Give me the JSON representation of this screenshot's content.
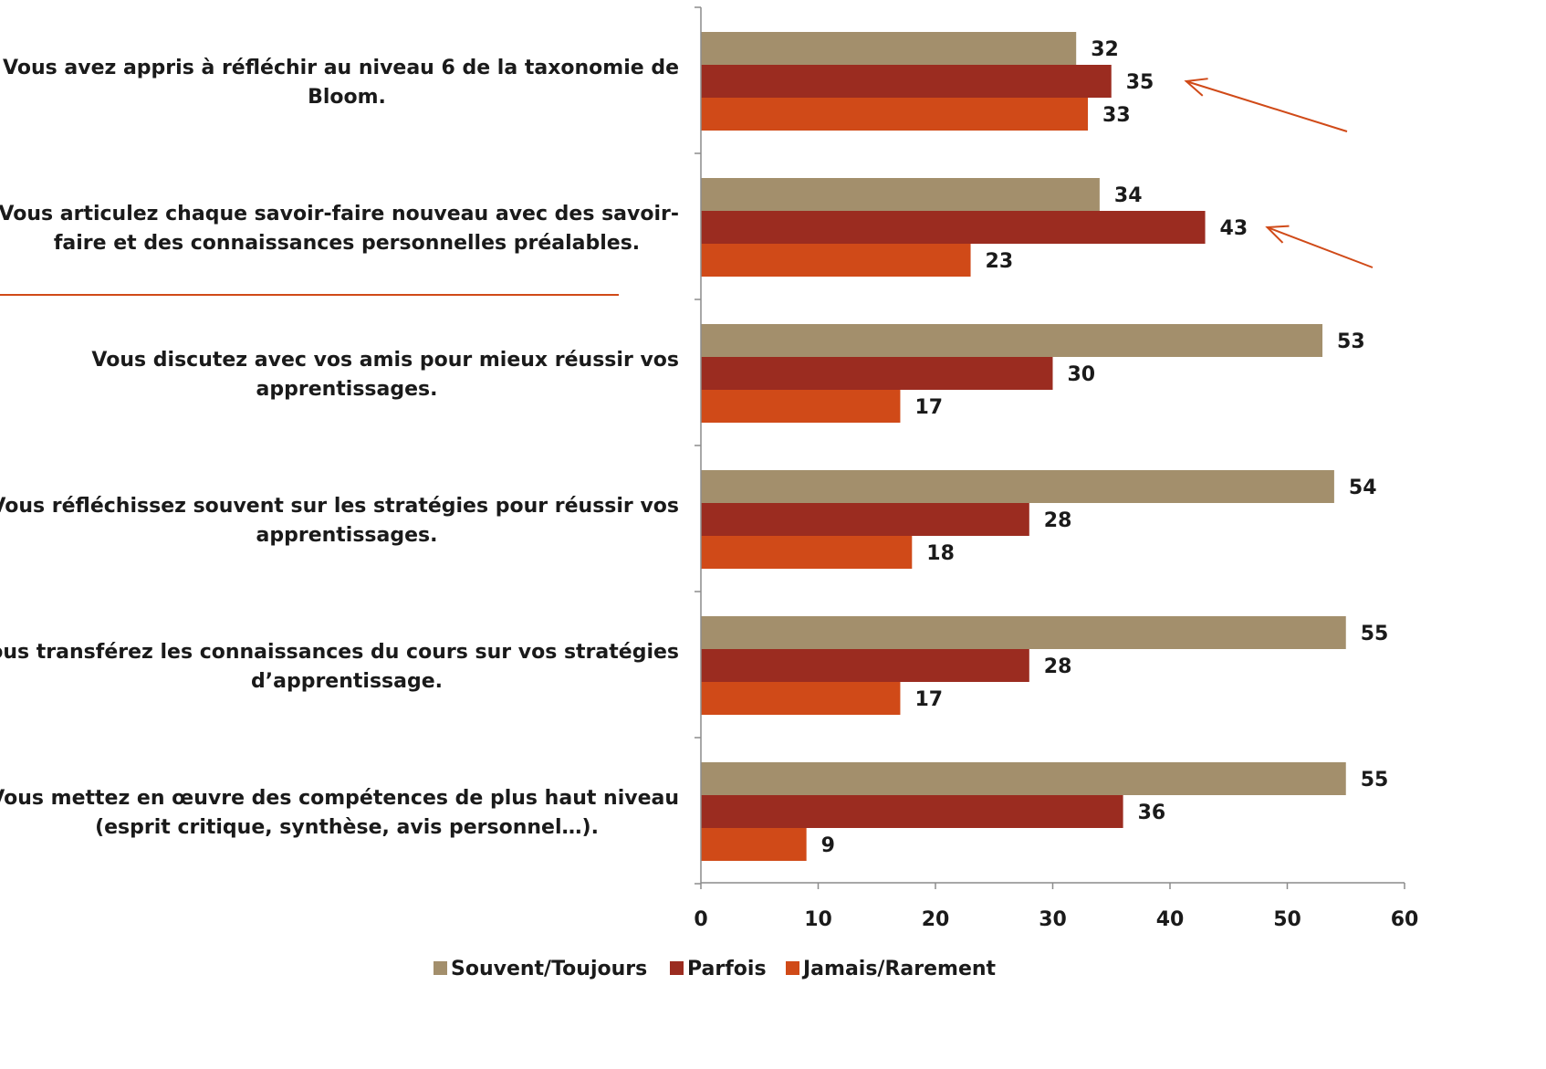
{
  "chart_data": {
    "type": "bar",
    "orientation": "horizontal",
    "categories": [
      [
        "Vous avez appris à réfléchir au  niveau 6 de la taxonomie de",
        "Bloom."
      ],
      [
        "Vous articulez chaque savoir-faire nouveau avec des savoir-",
        "faire et des connaissances personnelles préalables."
      ],
      [
        "Vous discutez avec vos amis pour mieux réussir vos",
        "apprentissages."
      ],
      [
        "Vous réfléchissez souvent sur les stratégies pour réussir vos",
        "apprentissages."
      ],
      [
        "Vous transférez les connaissances du cours sur vos  stratégies",
        "d’apprentissage."
      ],
      [
        "Vous mettez en œuvre des compétences de plus haut niveau",
        "(esprit critique, synthèse, avis personnel…)."
      ]
    ],
    "series": [
      {
        "name": "Souvent/Toujours",
        "color": "#a38f6c",
        "values": [
          32,
          34,
          53,
          54,
          55,
          55
        ]
      },
      {
        "name": "Parfois",
        "color": "#9b2c20",
        "values": [
          35,
          43,
          30,
          28,
          28,
          36
        ]
      },
      {
        "name": "Jamais/Rarement",
        "color": "#d04a18",
        "values": [
          33,
          23,
          17,
          18,
          17,
          9
        ]
      }
    ],
    "xlim": [
      0,
      60
    ],
    "xticks": [
      "0",
      "10",
      "20",
      "30",
      "40",
      "50",
      "60"
    ],
    "legend_position": "bottom",
    "annotations": {
      "arrows_point_to": [
        {
          "category_index": 0,
          "series": "Parfois"
        },
        {
          "category_index": 1,
          "series": "Parfois"
        }
      ],
      "divider_after_category": 1,
      "accent_color": "#d04a18"
    },
    "grid": false
  }
}
